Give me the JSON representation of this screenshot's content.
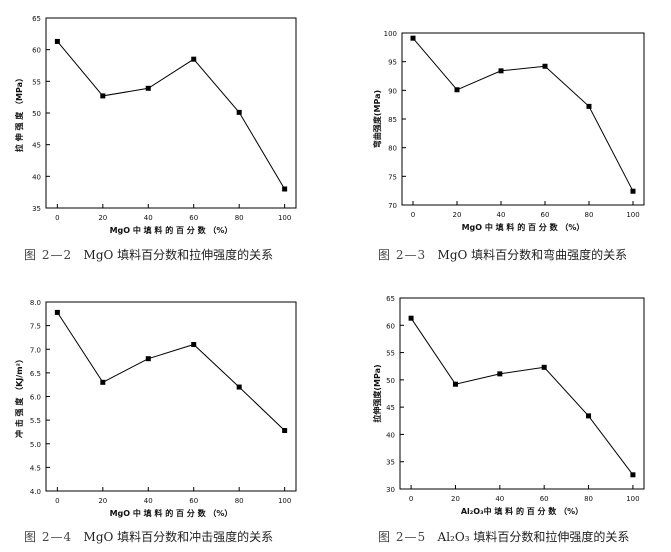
{
  "charts": [
    {
      "caption": {
        "num": "图 2—2",
        "text": "MgO 填料百分数和拉伸强度的关系"
      }
    },
    {
      "caption": {
        "num": "图 2—3",
        "text": "MgO 填料百分数和弯曲强度的关系"
      }
    },
    {
      "caption": {
        "num": "图 2—4",
        "text": "MgO 填料百分数和冲击强度的关系"
      }
    },
    {
      "caption": {
        "num": "图 2—5",
        "text": "Al₂O₃ 填料百分数和拉伸强度的关系"
      }
    }
  ],
  "chart_data": [
    {
      "type": "line",
      "title": "",
      "xlabel": "MgO 中 填 料 的 百 分 数 （%）",
      "ylabel": "拉 伸 强 度 （MPa）",
      "x": [
        0,
        20,
        40,
        60,
        80,
        100
      ],
      "xticks": [
        "0",
        "20",
        "40",
        "60",
        "80",
        "100"
      ],
      "xlim": [
        -5,
        105
      ],
      "yticks": [
        "35",
        "40",
        "45",
        "50",
        "55",
        "60",
        "65"
      ],
      "ylim": [
        35,
        65
      ],
      "series": [
        {
          "values": [
            61.3,
            52.7,
            53.9,
            58.5,
            50.1,
            38.0
          ]
        }
      ],
      "grid": false,
      "marker": "square"
    },
    {
      "type": "line",
      "title": "",
      "xlabel": "MgO 中 填 料 的 百 分 数 （%）",
      "ylabel": "弯曲强度(MPa)",
      "x": [
        0,
        20,
        40,
        60,
        80,
        100
      ],
      "xticks": [
        "0",
        "20",
        "40",
        "60",
        "80",
        "100"
      ],
      "xlim": [
        -5,
        105
      ],
      "yticks": [
        "70",
        "75",
        "80",
        "85",
        "90",
        "95",
        "100"
      ],
      "ylim": [
        70,
        100
      ],
      "series": [
        {
          "values": [
            99.1,
            90.1,
            93.4,
            94.2,
            87.2,
            72.4
          ]
        }
      ],
      "grid": false,
      "marker": "square"
    },
    {
      "type": "line",
      "title": "",
      "xlabel": "MgO 中 填 料 的 百 分 数 （%）",
      "ylabel": "冲 击 强 度 （KJ/m²）",
      "x": [
        0,
        20,
        40,
        60,
        80,
        100
      ],
      "xticks": [
        "0",
        "20",
        "40",
        "60",
        "80",
        "100"
      ],
      "xlim": [
        -5,
        105
      ],
      "yticks": [
        "4.0",
        "4.5",
        "5.0",
        "5.5",
        "6.0",
        "6.5",
        "7.0",
        "7.5",
        "8.0"
      ],
      "ylim": [
        4.0,
        8.0
      ],
      "series": [
        {
          "values": [
            7.78,
            6.3,
            6.8,
            7.1,
            6.2,
            5.28
          ]
        }
      ],
      "grid": false,
      "marker": "square"
    },
    {
      "type": "line",
      "title": "",
      "xlabel": "Al₂O₃中 填 料 的 百 分 数 （%）",
      "ylabel": "拉伸强度(MPa)",
      "x": [
        0,
        20,
        40,
        60,
        80,
        100
      ],
      "xticks": [
        "0",
        "20",
        "40",
        "60",
        "80",
        "100"
      ],
      "xlim": [
        -5,
        105
      ],
      "yticks": [
        "30",
        "35",
        "40",
        "45",
        "50",
        "55",
        "60",
        "65"
      ],
      "ylim": [
        30,
        65
      ],
      "series": [
        {
          "values": [
            61.3,
            49.2,
            51.1,
            52.3,
            43.4,
            32.6
          ]
        }
      ],
      "grid": false,
      "marker": "square"
    }
  ]
}
